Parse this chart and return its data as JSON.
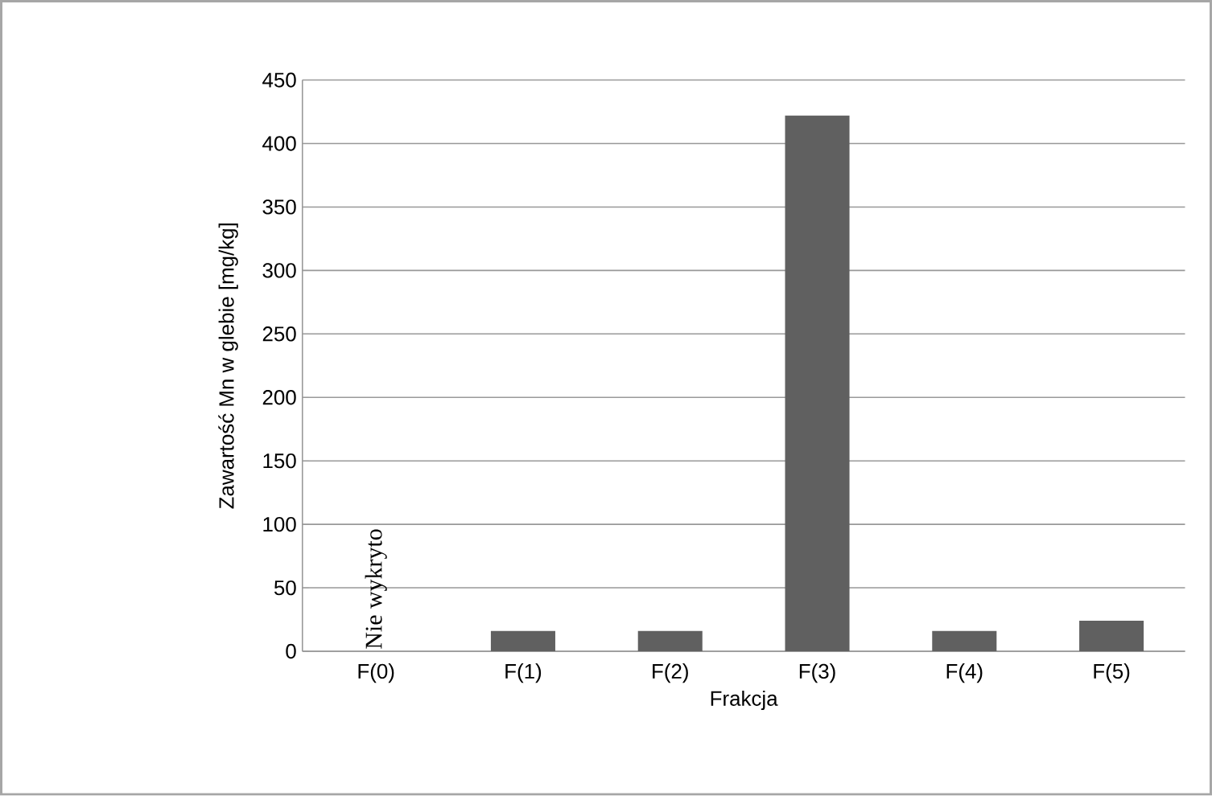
{
  "chart_data": {
    "type": "bar",
    "categories": [
      "F(0)",
      "F(1)",
      "F(2)",
      "F(3)",
      "F(4)",
      "F(5)"
    ],
    "values": [
      null,
      16,
      16,
      422,
      16,
      24
    ],
    "color": "#606060",
    "xlabel": "Frakcja",
    "ylabel": "Zawartość Mn w glebie [mg/kg]",
    "ylim": [
      0,
      450
    ],
    "yticks": [
      0,
      50,
      100,
      150,
      200,
      250,
      300,
      350,
      400,
      450
    ],
    "grid": "y",
    "annotations": [
      "Nie wykryto"
    ]
  }
}
